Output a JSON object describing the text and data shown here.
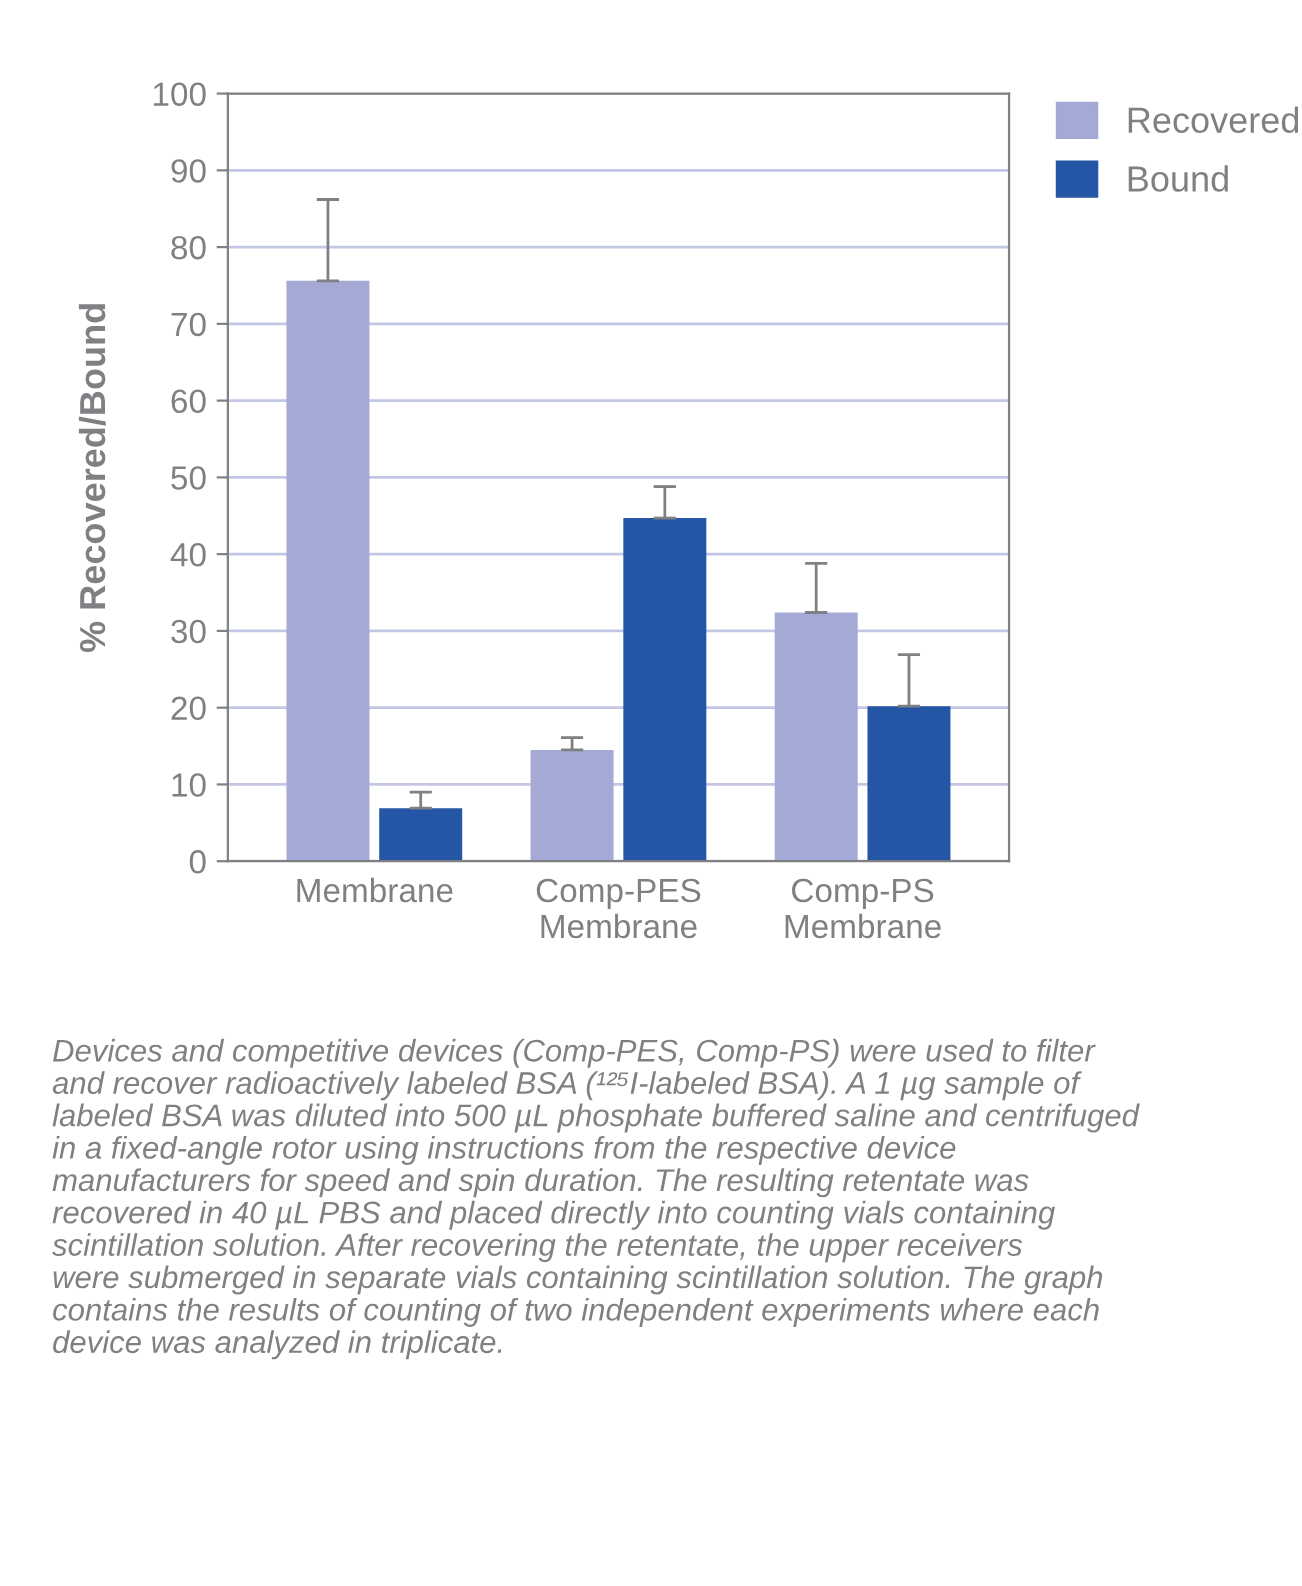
{
  "chart_data": {
    "type": "bar",
    "ylabel": "% Recovered/Bound",
    "categories": [
      "Membrane",
      "Comp-PES\nMembrane",
      "Comp-PS\nMembrane"
    ],
    "series": [
      {
        "name": "Recovered",
        "color": "#a4a9d5",
        "values": [
          75.6,
          14.5,
          32.4
        ],
        "errors": [
          [
            75.6,
            86.2
          ],
          [
            14.5,
            16.1
          ],
          [
            32.4,
            38.8
          ]
        ]
      },
      {
        "name": "Bound",
        "color": "#2556a5",
        "values": [
          6.9,
          44.7,
          20.2
        ],
        "errors": [
          [
            6.9,
            9.0
          ],
          [
            44.7,
            48.8
          ],
          [
            20.2,
            26.9
          ]
        ]
      }
    ],
    "ylim": [
      0,
      100
    ],
    "yticks": [
      0,
      10,
      20,
      30,
      40,
      50,
      60,
      70,
      80,
      90,
      100
    ],
    "grid": "y",
    "legend": "top right",
    "annotations": [
      "Devices and competitive devices (Comp-PES, Comp-PS) were used to filter\nand recover radioactively labeled BSA (¹²⁵I-labeled BSA). A 1 µg sample of\nlabeled BSA was diluted into 500 µL phosphate buffered saline and centrifuged\nin a fixed-angle rotor using instructions from the respective device\nmanufacturers for speed and spin duration. The resulting retentate was\nrecovered in 40 µL PBS and placed directly into counting vials containing\nscintillation solution. After recovering the retentate, the upper receivers\nwere submerged in separate vials containing scintillation solution. The graph\ncontains the results of counting of two independent experiments where each\ndevice was analyzed in triplicate."
    ]
  }
}
